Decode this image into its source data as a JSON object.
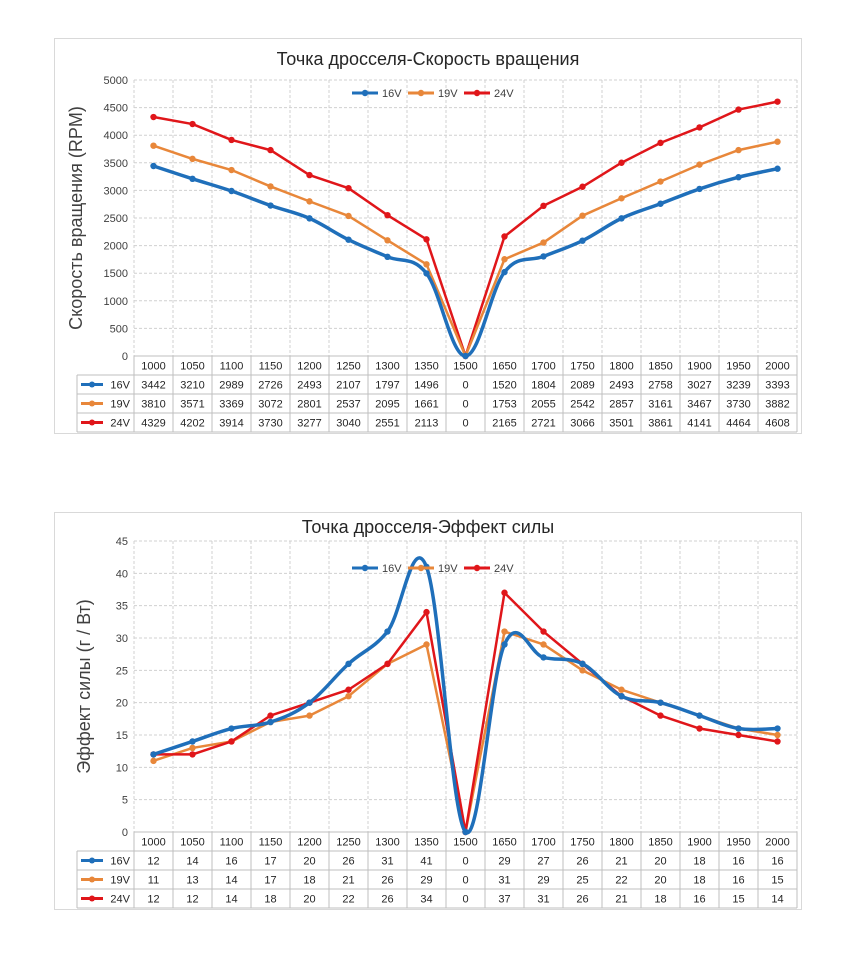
{
  "colors": {
    "16V": "#1f6fba",
    "19V": "#e8873a",
    "24V": "#e0161a"
  },
  "chart_data": [
    {
      "type": "line",
      "title": "Точка дросселя-Скорость вращения",
      "ylabel": "Скорость вращения  (RPM)",
      "xlabel": "",
      "categories": [
        "1000",
        "1050",
        "1100",
        "1150",
        "1200",
        "1250",
        "1300",
        "1350",
        "1500",
        "1650",
        "1700",
        "1750",
        "1800",
        "1850",
        "1900",
        "1950",
        "2000"
      ],
      "ylim": [
        0,
        5000
      ],
      "yticks": [
        0,
        500,
        1000,
        1500,
        2000,
        2500,
        3000,
        3500,
        4000,
        4500,
        5000
      ],
      "grid": true,
      "legend_position": "top",
      "data_table": true,
      "series": [
        {
          "name": "16V",
          "values": [
            3442,
            3210,
            2989,
            2726,
            2493,
            2107,
            1797,
            1496,
            0,
            1520,
            1804,
            2089,
            2493,
            2758,
            3027,
            3239,
            3393
          ]
        },
        {
          "name": "19V",
          "values": [
            3810,
            3571,
            3369,
            3072,
            2801,
            2537,
            2095,
            1661,
            0,
            1753,
            2055,
            2542,
            2857,
            3161,
            3467,
            3730,
            3882
          ]
        },
        {
          "name": "24V",
          "values": [
            4329,
            4202,
            3914,
            3730,
            3277,
            3040,
            2551,
            2113,
            0,
            2165,
            2721,
            3066,
            3501,
            3861,
            4141,
            4464,
            4608
          ]
        }
      ]
    },
    {
      "type": "line",
      "title": "Точка дросселя-Эффект силы",
      "ylabel": "Эффект силы  (г / Вт)",
      "xlabel": "",
      "categories": [
        "1000",
        "1050",
        "1100",
        "1150",
        "1200",
        "1250",
        "1300",
        "1350",
        "1500",
        "1650",
        "1700",
        "1750",
        "1800",
        "1850",
        "1900",
        "1950",
        "2000"
      ],
      "ylim": [
        0,
        45
      ],
      "yticks": [
        0,
        5,
        10,
        15,
        20,
        25,
        30,
        35,
        40,
        45
      ],
      "grid": true,
      "legend_position": "top",
      "data_table": true,
      "series": [
        {
          "name": "16V",
          "values": [
            12,
            14,
            16,
            17,
            20,
            26,
            31,
            41,
            0,
            29,
            27,
            26,
            21,
            20,
            18,
            16,
            16
          ]
        },
        {
          "name": "19V",
          "values": [
            11,
            13,
            14,
            17,
            18,
            21,
            26,
            29,
            0,
            31,
            29,
            25,
            22,
            20,
            18,
            16,
            15
          ]
        },
        {
          "name": "24V",
          "values": [
            12,
            12,
            14,
            18,
            20,
            22,
            26,
            34,
            0,
            37,
            31,
            26,
            21,
            18,
            16,
            15,
            14
          ]
        }
      ]
    }
  ]
}
